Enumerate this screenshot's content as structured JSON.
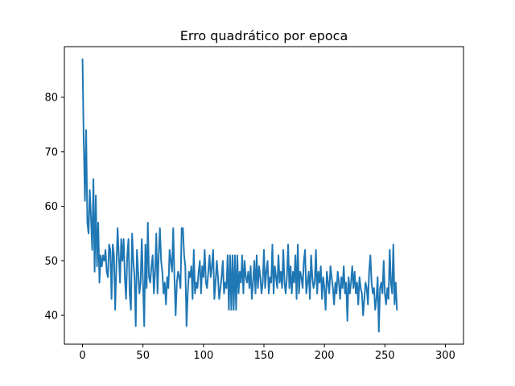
{
  "chart_data": {
    "type": "line",
    "title": "Erro quadrático por epoca",
    "xlabel": "",
    "ylabel": "",
    "xlim": [
      -15,
      315
    ],
    "ylim": [
      34.7,
      89.3
    ],
    "grid": false,
    "line_color": "#1f77b4",
    "x_ticks": [
      0,
      50,
      100,
      150,
      200,
      250,
      300
    ],
    "x_tick_labels": [
      "0",
      "50",
      "100",
      "150",
      "200",
      "250",
      "300"
    ],
    "y_ticks": [
      40,
      50,
      60,
      70,
      80
    ],
    "y_tick_labels": [
      "40",
      "50",
      "60",
      "70",
      "80"
    ],
    "series": [
      {
        "x_start": 0,
        "x_step": 1,
        "values": [
          87,
          72,
          61,
          74,
          57,
          55,
          63,
          58,
          52,
          65,
          48,
          62,
          49,
          57,
          46,
          51,
          49,
          51,
          50,
          52,
          48,
          47,
          53,
          52,
          43,
          53,
          51,
          41,
          49,
          56,
          51,
          46,
          54,
          50,
          54,
          47,
          43,
          51,
          54,
          44,
          41,
          55,
          50,
          47,
          38,
          52,
          48,
          44,
          46,
          54,
          46,
          38,
          53,
          45,
          57,
          47,
          46,
          49,
          51,
          44,
          48,
          55,
          44,
          51,
          56,
          50,
          48,
          44,
          46,
          42,
          47,
          45,
          52,
          50,
          48,
          56,
          47,
          40,
          46,
          48,
          47,
          45,
          56,
          56,
          51,
          49,
          38,
          44,
          48,
          47,
          49,
          43,
          52,
          44,
          46,
          45,
          48,
          50,
          44,
          49,
          47,
          52,
          46,
          45,
          48,
          51,
          47,
          49,
          52,
          43,
          46,
          50,
          47,
          43,
          45,
          47,
          50,
          44,
          46,
          45,
          51,
          41,
          51,
          41,
          51,
          41,
          51,
          41,
          51,
          44,
          48,
          46,
          51,
          44,
          50,
          47,
          46,
          48,
          45,
          49,
          43,
          46,
          50,
          44,
          51,
          45,
          49,
          47,
          44,
          46,
          52,
          45,
          48,
          50,
          44,
          47,
          46,
          53,
          44,
          49,
          47,
          45,
          51,
          46,
          48,
          45,
          52,
          46,
          44,
          47,
          53,
          45,
          49,
          44,
          48,
          46,
          51,
          43,
          53,
          44,
          48,
          47,
          45,
          50,
          52,
          44,
          46,
          48,
          43,
          51,
          47,
          45,
          46,
          52,
          44,
          48,
          46,
          49,
          43,
          47,
          45,
          41,
          48,
          46,
          44,
          49,
          47,
          45,
          42,
          46,
          44,
          48,
          46,
          43,
          47,
          45,
          49,
          44,
          46,
          39,
          47,
          44,
          46,
          49,
          45,
          48,
          44,
          46,
          42,
          47,
          45,
          44,
          40,
          43,
          46,
          45,
          42,
          48,
          51,
          46,
          44,
          45,
          41,
          43,
          47,
          37,
          45,
          46,
          44,
          50,
          44,
          42,
          45,
          43,
          52,
          46,
          44,
          53,
          42,
          46,
          41
        ]
      }
    ]
  }
}
